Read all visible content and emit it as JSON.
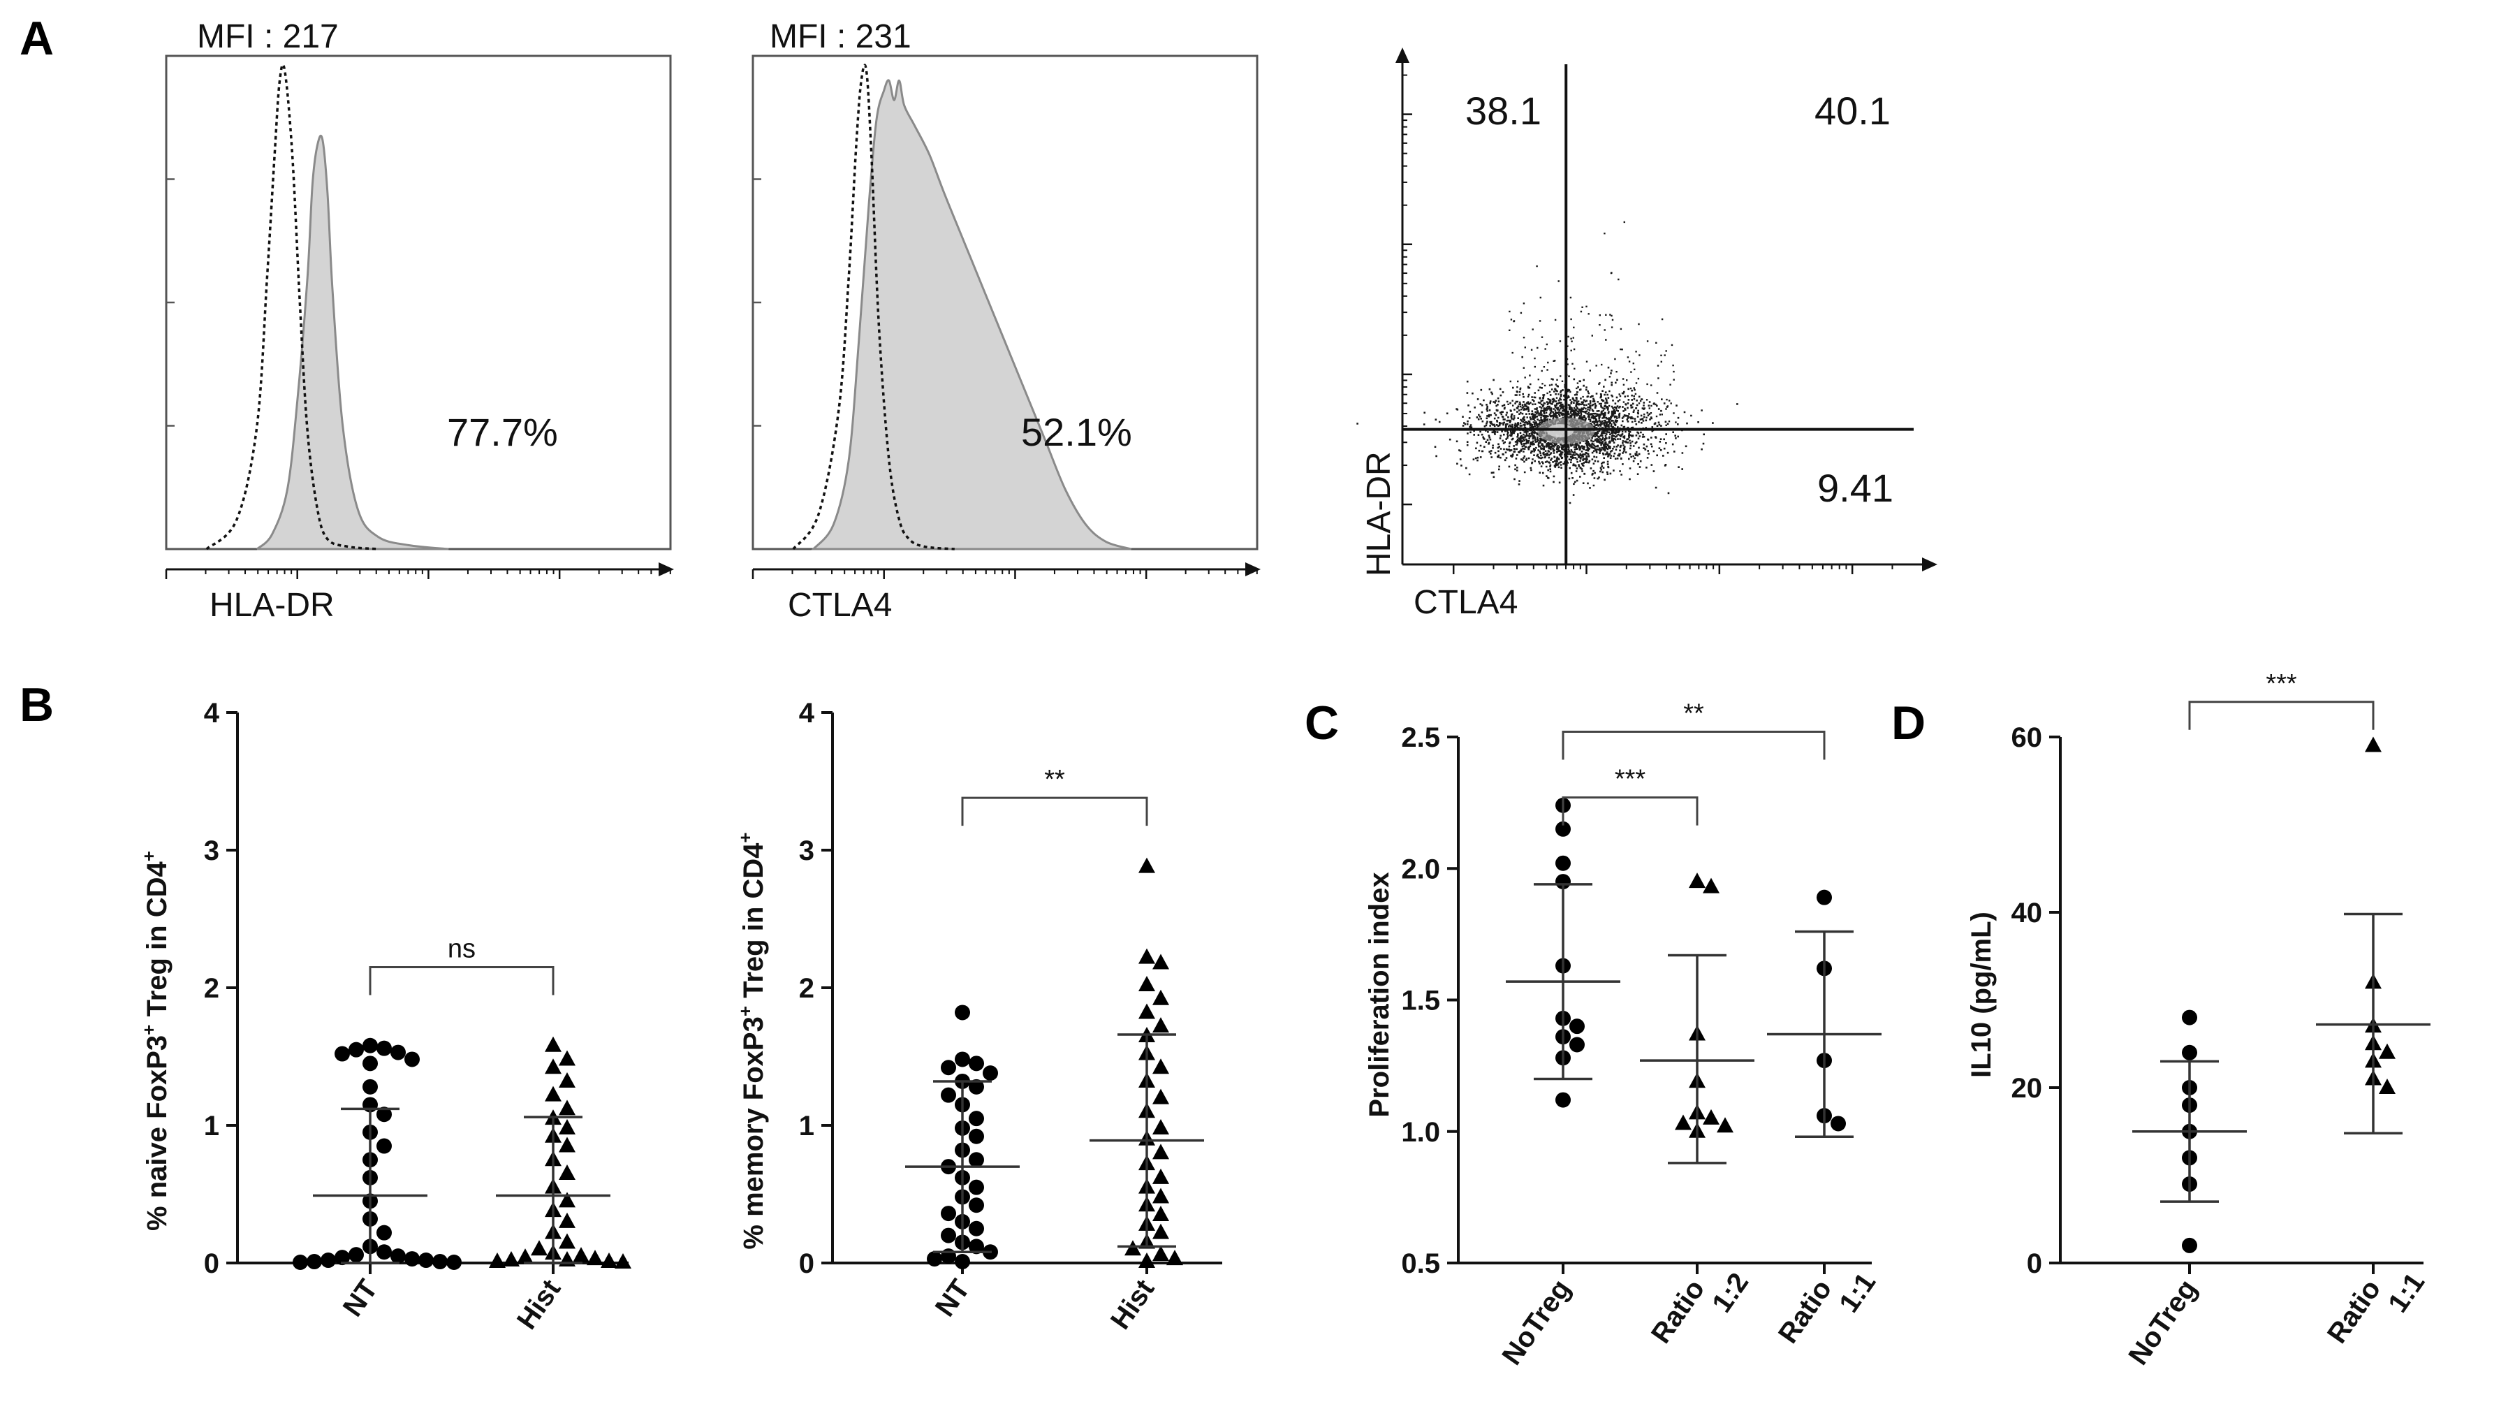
{
  "panel_letters": {
    "a": "A",
    "b": "B",
    "c": "C",
    "d": "D"
  },
  "chart_data": [
    {
      "id": "hist-hla",
      "type": "histogram",
      "annotation": "MFI : 217",
      "xlabel": "HLA-DR",
      "percent": "77.7%",
      "series": [
        {
          "name": "control",
          "style": "dotted",
          "x": [
            0.08,
            0.14,
            0.18,
            0.2,
            0.215,
            0.225,
            0.235,
            0.25,
            0.265,
            0.28,
            0.3,
            0.32,
            0.36,
            0.42
          ],
          "y": [
            0,
            0.06,
            0.25,
            0.55,
            0.8,
            0.95,
            0.97,
            0.8,
            0.5,
            0.24,
            0.08,
            0.02,
            0.005,
            0
          ]
        },
        {
          "name": "stained",
          "style": "filled",
          "x": [
            0.18,
            0.21,
            0.24,
            0.26,
            0.28,
            0.29,
            0.3,
            0.31,
            0.32,
            0.33,
            0.35,
            0.38,
            0.42,
            0.48,
            0.56
          ],
          "y": [
            0,
            0.03,
            0.12,
            0.3,
            0.55,
            0.74,
            0.82,
            0.83,
            0.72,
            0.52,
            0.25,
            0.08,
            0.025,
            0.008,
            0
          ]
        }
      ]
    },
    {
      "id": "hist-ctla4",
      "type": "histogram",
      "annotation": "MFI : 231",
      "xlabel": "CTLA4",
      "percent": "52.1%",
      "series": [
        {
          "name": "control",
          "style": "dotted",
          "x": [
            0.08,
            0.13,
            0.17,
            0.19,
            0.205,
            0.215,
            0.225,
            0.235,
            0.25,
            0.27,
            0.29,
            0.31,
            0.34,
            0.4
          ],
          "y": [
            0,
            0.07,
            0.28,
            0.55,
            0.82,
            0.95,
            0.97,
            0.8,
            0.45,
            0.18,
            0.06,
            0.02,
            0.005,
            0
          ]
        },
        {
          "name": "stained",
          "style": "filled",
          "x": [
            0.12,
            0.16,
            0.19,
            0.21,
            0.23,
            0.245,
            0.26,
            0.27,
            0.28,
            0.29,
            0.3,
            0.32,
            0.35,
            0.38,
            0.42,
            0.46,
            0.5,
            0.54,
            0.58,
            0.62,
            0.66,
            0.7,
            0.75
          ],
          "y": [
            0,
            0.05,
            0.18,
            0.42,
            0.7,
            0.87,
            0.93,
            0.95,
            0.91,
            0.95,
            0.9,
            0.86,
            0.8,
            0.72,
            0.62,
            0.52,
            0.42,
            0.32,
            0.22,
            0.12,
            0.05,
            0.015,
            0
          ]
        }
      ]
    },
    {
      "id": "dotplot",
      "type": "scatter",
      "xlabel": "CTLA4",
      "ylabel": "HLA-DR",
      "quadrants": {
        "ul": "38.1",
        "ur": "40.1",
        "lr": "9.41"
      },
      "gates": {
        "x": 0.32,
        "y": 0.27
      },
      "cloud": {
        "cx": 0.32,
        "cy": 0.27,
        "sx": 0.075,
        "sy": 0.038,
        "n": 2600,
        "tail_n": 260
      }
    },
    {
      "id": "naive",
      "type": "scatter",
      "ylabel": "% naive FoxP3",
      "ylabel_sup1": "+",
      "ylabel_mid": " Treg in CD4",
      "ylabel_sup2": "+",
      "ylim": [
        0,
        4
      ],
      "yticks": [
        0,
        1,
        2,
        3,
        4
      ],
      "categories": [
        "NT",
        "Hist"
      ],
      "markers": [
        "circle",
        "triangle"
      ],
      "points": [
        [
          1.58,
          1.56,
          1.55,
          1.53,
          1.52,
          1.48,
          1.45,
          1.28,
          1.15,
          1.08,
          0.95,
          0.85,
          0.75,
          0.62,
          0.45,
          0.32,
          0.22,
          0.12,
          0.08,
          0.06,
          0.05,
          0.04,
          0.03,
          0.02,
          0.02,
          0.01,
          0.01,
          0.005,
          0.005
        ],
        [
          1.58,
          1.48,
          1.42,
          1.32,
          1.22,
          1.12,
          1.05,
          0.98,
          0.92,
          0.85,
          0.75,
          0.65,
          0.55,
          0.45,
          0.38,
          0.3,
          0.22,
          0.15,
          0.1,
          0.07,
          0.05,
          0.04,
          0.03,
          0.02,
          0.02,
          0.01,
          0.01,
          0.005
        ]
      ],
      "mean": [
        0.49,
        0.49
      ],
      "error_upper": [
        1.12,
        1.06
      ],
      "error_lower": [
        0.0,
        0.0
      ],
      "significance": [
        {
          "from": 0,
          "to": 1,
          "label": "ns",
          "y": 2.15
        }
      ]
    },
    {
      "id": "memory",
      "type": "scatter",
      "ylabel": "% memory FoxP3",
      "ylabel_sup1": "+",
      "ylabel_mid": " Treg in CD4",
      "ylabel_sup2": "+",
      "ylim": [
        0,
        4
      ],
      "yticks": [
        0,
        1,
        2,
        3,
        4
      ],
      "categories": [
        "NT",
        "Hist"
      ],
      "markers": [
        "circle",
        "triangle"
      ],
      "points": [
        [
          1.82,
          1.48,
          1.45,
          1.42,
          1.38,
          1.32,
          1.28,
          1.22,
          1.15,
          1.05,
          0.98,
          0.92,
          0.82,
          0.75,
          0.7,
          0.62,
          0.55,
          0.48,
          0.42,
          0.36,
          0.3,
          0.25,
          0.2,
          0.15,
          0.12,
          0.08,
          0.05,
          0.03,
          0.01
        ],
        [
          2.88,
          2.22,
          2.18,
          2.02,
          1.92,
          1.82,
          1.72,
          1.65,
          1.52,
          1.42,
          1.32,
          1.2,
          1.1,
          0.98,
          0.9,
          0.8,
          0.72,
          0.62,
          0.55,
          0.48,
          0.42,
          0.35,
          0.28,
          0.22,
          0.15,
          0.1,
          0.06,
          0.03,
          0.01
        ]
      ],
      "mean": [
        0.7,
        0.89
      ],
      "error_upper": [
        1.32,
        1.66
      ],
      "error_lower": [
        0.08,
        0.12
      ],
      "significance": [
        {
          "from": 0,
          "to": 1,
          "label": "**",
          "y": 3.38
        }
      ]
    },
    {
      "id": "prolif",
      "type": "scatter",
      "ylabel": "Proliferation index",
      "ylim": [
        0.5,
        2.5
      ],
      "yticks": [
        0.5,
        1.0,
        1.5,
        2.0,
        2.5
      ],
      "ytick_labels": [
        "0.5",
        "1.0",
        "1.5",
        "2.0",
        "2.5"
      ],
      "categories": [
        "NoTreg",
        "Ratio 1:2",
        "Ratio 1:1"
      ],
      "categories_line1": [
        "NoTreg",
        "Ratio",
        "Ratio"
      ],
      "categories_line2": [
        "",
        "1:2",
        "1:1"
      ],
      "markers": [
        "circle",
        "triangle",
        "circle"
      ],
      "points": [
        [
          2.24,
          2.15,
          2.02,
          1.95,
          1.63,
          1.43,
          1.4,
          1.36,
          1.33,
          1.28,
          1.12
        ],
        [
          1.95,
          1.93,
          1.37,
          1.19,
          1.07,
          1.05,
          1.03,
          1.02,
          1.0
        ],
        [
          1.89,
          1.62,
          1.27,
          1.06,
          1.03
        ]
      ],
      "mean": [
        1.57,
        1.27,
        1.37
      ],
      "error_upper": [
        1.94,
        1.67,
        1.76
      ],
      "error_lower": [
        1.2,
        0.88,
        0.98
      ],
      "significance": [
        {
          "from": 0,
          "to": 1,
          "label": "***",
          "y": 2.27
        },
        {
          "from": 0,
          "to": 2,
          "label": "**",
          "y": 2.52
        }
      ]
    },
    {
      "id": "il10",
      "type": "scatter",
      "ylabel": "IL10 (pg/mL)",
      "ylim": [
        0,
        60
      ],
      "yticks": [
        0,
        20,
        40,
        60
      ],
      "ytick_labels": [
        "0",
        "20",
        "40",
        "60"
      ],
      "categories": [
        "NoTreg",
        "Ratio 1:1"
      ],
      "categories_line1": [
        "NoTreg",
        "Ratio"
      ],
      "categories_line2": [
        "",
        "1:1"
      ],
      "markers": [
        "circle",
        "triangle"
      ],
      "points": [
        [
          28,
          24,
          20,
          18,
          15,
          12,
          9,
          2
        ],
        [
          59,
          32,
          27,
          25,
          24,
          23,
          21,
          20
        ]
      ],
      "mean": [
        15,
        27.2
      ],
      "error_upper": [
        23,
        39.8
      ],
      "error_lower": [
        7,
        14.8
      ],
      "significance": [
        {
          "from": 0,
          "to": 1,
          "label": "***",
          "y": 64
        }
      ]
    }
  ]
}
